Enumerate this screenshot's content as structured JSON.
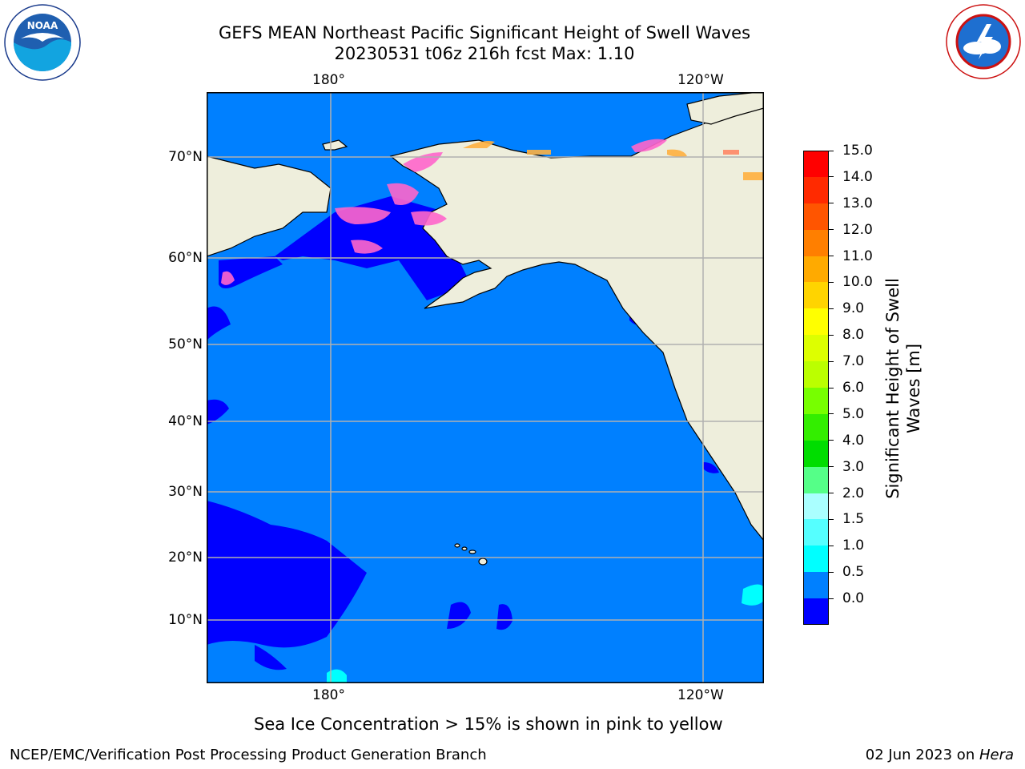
{
  "header": {
    "title_line1": "GEFS MEAN Northeast Pacific Significant Height of Swell Waves",
    "title_line2": "20230531 t06z 216h fcst   Max: 1.10"
  },
  "logos": {
    "left": {
      "name": "NOAA",
      "ring_text": "NATIONAL OCEANIC AND ATMOSPHERIC ADMINISTRATION • U.S. DEPARTMENT OF COMMERCE"
    },
    "right": {
      "name": "National Weather Service",
      "ring_text": "NATIONAL WEATHER SERVICE"
    }
  },
  "map": {
    "top_lon_labels": [
      "180°",
      "120°W"
    ],
    "bottom_lon_labels": [
      "180°",
      "120°W"
    ],
    "lat_labels": [
      "70°N",
      "60°N",
      "50°N",
      "40°N",
      "30°N",
      "20°N",
      "10°N"
    ],
    "colors": {
      "land": "#eeeedc",
      "ocean_main": "#0080ff",
      "ocean_low": "#0000ff",
      "ocean_cyan": "#00ffff",
      "grid": "#b0b0b0",
      "ice_pink": "#ff66cc",
      "ice_orange": "#ffb040"
    }
  },
  "colorbar": {
    "label_line1": "Significant Height of Swell",
    "label_line2": "Waves [m]",
    "ticks": [
      "15.0",
      "14.0",
      "13.0",
      "12.0",
      "11.0",
      "10.0",
      "9.0",
      "8.0",
      "7.0",
      "6.0",
      "5.0",
      "4.0",
      "3.0",
      "2.0",
      "1.5",
      "1.0",
      "0.5",
      "0.0"
    ],
    "colors_top_to_bottom": [
      "#ff0000",
      "#ff2a00",
      "#ff5500",
      "#ff7f00",
      "#ffaa00",
      "#ffd400",
      "#ffff00",
      "#ddff00",
      "#bbff00",
      "#77ff00",
      "#33ee00",
      "#00dd00",
      "#55ff88",
      "#aaffff",
      "#55ffff",
      "#00ffff",
      "#0080ff",
      "#0000ff"
    ]
  },
  "note": "Sea Ice Concentration > 15% is shown in pink to yellow",
  "footer": {
    "left": "NCEP/EMC/Verification Post Processing Product Generation Branch",
    "right_date": "02 Jun 2023 on ",
    "right_host": "Hera"
  }
}
